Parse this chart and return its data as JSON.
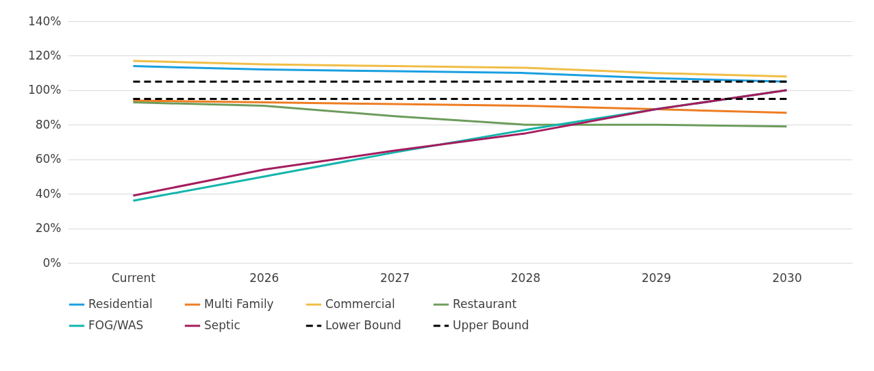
{
  "chart_data": {
    "type": "line",
    "categories": [
      "Current",
      "2026",
      "2027",
      "2028",
      "2029",
      "2030"
    ],
    "series": [
      {
        "name": "Residential",
        "color": "#1a9fe0",
        "values": [
          114,
          112,
          111,
          110,
          107,
          105
        ]
      },
      {
        "name": "Multi Family",
        "color": "#ee7d23",
        "values": [
          94,
          93,
          92,
          91,
          89,
          87
        ]
      },
      {
        "name": "Commercial",
        "color": "#f0bd45",
        "values": [
          117,
          115,
          114,
          113,
          110,
          108
        ]
      },
      {
        "name": "Restaurant",
        "color": "#6d9c5b",
        "values": [
          93,
          91,
          85,
          80,
          80,
          79
        ]
      },
      {
        "name": "FOG/WAS",
        "color": "#12b5ad",
        "values": [
          36,
          50,
          64,
          77,
          89,
          100
        ]
      },
      {
        "name": "Septic",
        "color": "#a51c5e",
        "values": [
          39,
          54,
          65,
          75,
          89,
          100
        ]
      },
      {
        "name": "Lower Bound",
        "color": "#000000",
        "line_style": "dashed",
        "values": [
          95,
          95,
          95,
          95,
          95,
          95
        ]
      },
      {
        "name": "Upper Bound",
        "color": "#000000",
        "line_style": "dashed",
        "values": [
          105,
          105,
          105,
          105,
          105,
          105
        ]
      }
    ],
    "ylim": [
      0,
      140
    ],
    "yticks": [
      {
        "value": 0,
        "label": "0%"
      },
      {
        "value": 20,
        "label": "20%"
      },
      {
        "value": 40,
        "label": "40%"
      },
      {
        "value": 60,
        "label": "60%"
      },
      {
        "value": 80,
        "label": "80%"
      },
      {
        "value": 100,
        "label": "100%"
      },
      {
        "value": 120,
        "label": "120%"
      },
      {
        "value": 140,
        "label": "140%"
      }
    ],
    "grid": "y",
    "legend": "bottom",
    "marker": "none",
    "line_style": "solid"
  }
}
